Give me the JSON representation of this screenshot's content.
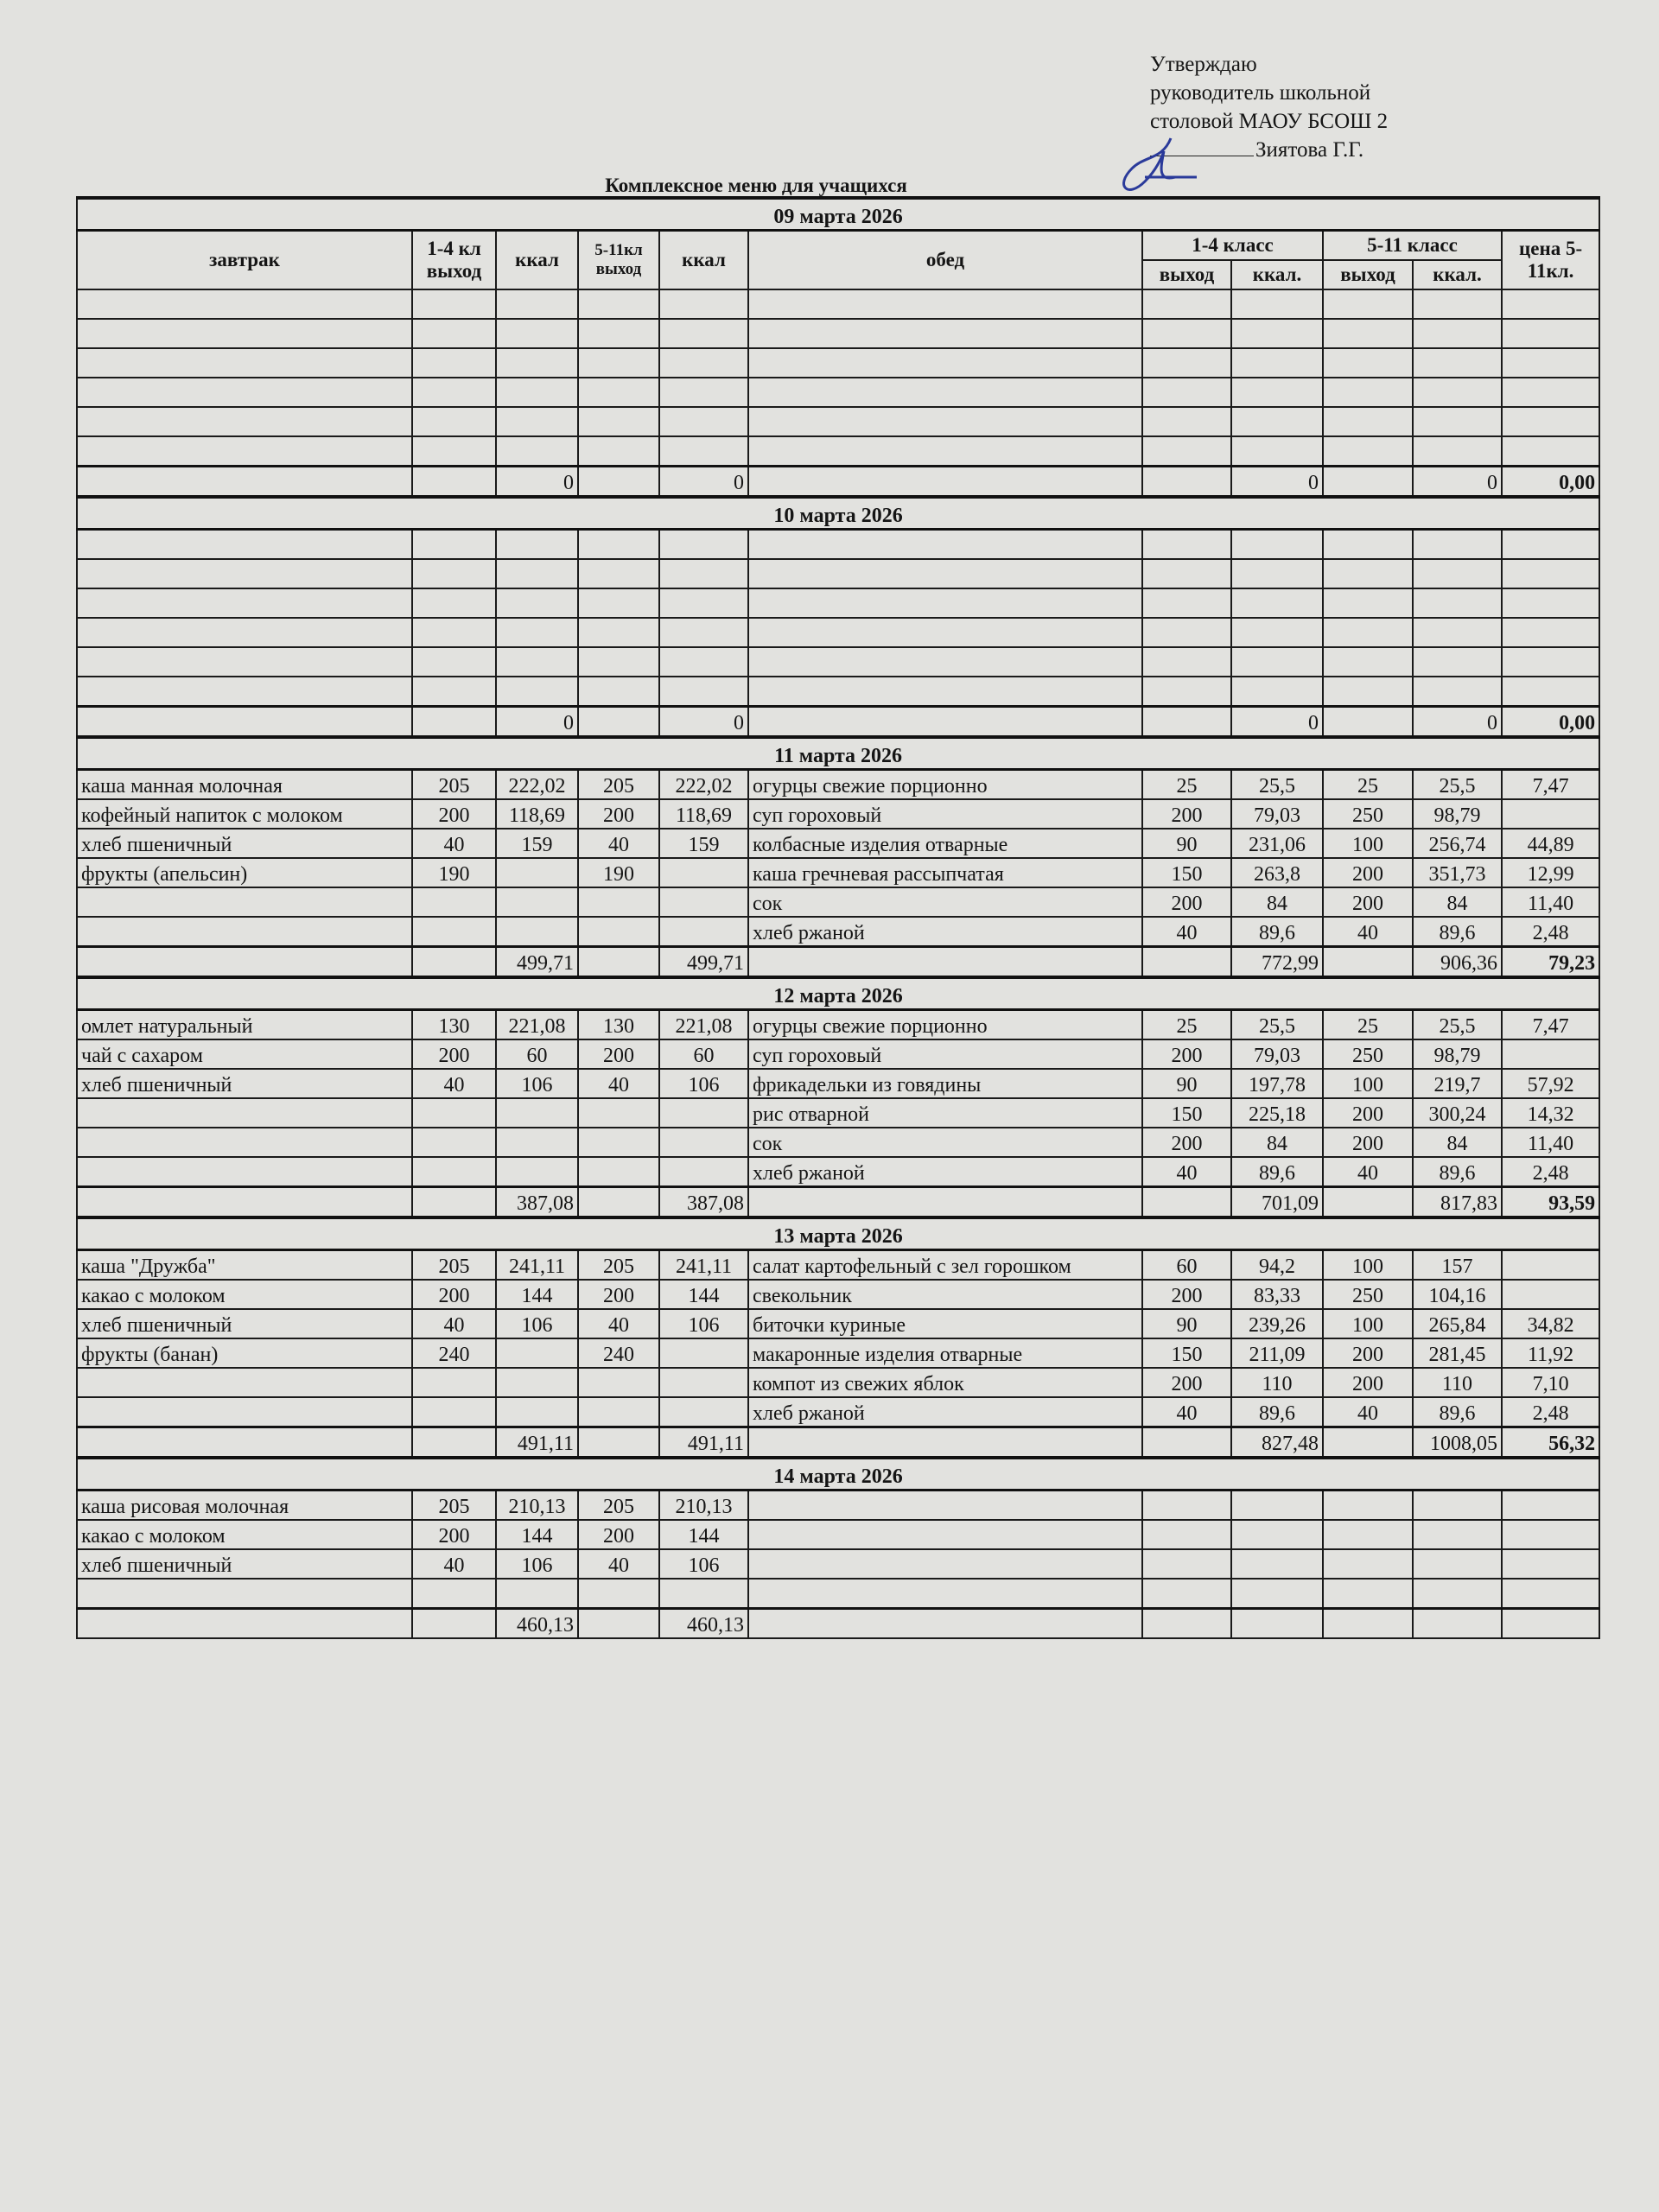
{
  "approval": {
    "line1": "Утверждаю",
    "line2": "руководитель школьной",
    "line3": "столовой МАОУ БСОШ 2",
    "signer": "Зиятова Г.Г."
  },
  "title": "Комплексное меню для учащихся",
  "header": {
    "breakfast": "завтрак",
    "out_1_4": "1-4 кл выход",
    "kcal": "ккал",
    "out_5_11": "5-11кл выход",
    "kcal2": "ккал",
    "lunch": "обед",
    "class_1_4": "1-4 класс",
    "class_5_11": "5-11 класс",
    "price": "цена 5-11кл.",
    "out": "выход",
    "kcal_short": "ккал.",
    "out2": "выход",
    "kcal_short2": "ккал."
  },
  "days": [
    {
      "date": "09 марта 2026",
      "rows": [
        [
          "",
          "",
          "",
          "",
          "",
          "",
          "",
          "",
          "",
          "",
          ""
        ],
        [
          "",
          "",
          "",
          "",
          "",
          "",
          "",
          "",
          "",
          "",
          ""
        ],
        [
          "",
          "",
          "",
          "",
          "",
          "",
          "",
          "",
          "",
          "",
          ""
        ],
        [
          "",
          "",
          "",
          "",
          "",
          "",
          "",
          "",
          "",
          "",
          ""
        ],
        [
          "",
          "",
          "",
          "",
          "",
          "",
          "",
          "",
          "",
          "",
          ""
        ],
        [
          "",
          "",
          "",
          "",
          "",
          "",
          "",
          "",
          "",
          "",
          ""
        ]
      ],
      "total": [
        "",
        "",
        "0",
        "",
        "0",
        "",
        "",
        "0",
        "",
        "0",
        "0,00"
      ]
    },
    {
      "date": "10 марта 2026",
      "rows": [
        [
          "",
          "",
          "",
          "",
          "",
          "",
          "",
          "",
          "",
          "",
          ""
        ],
        [
          "",
          "",
          "",
          "",
          "",
          "",
          "",
          "",
          "",
          "",
          ""
        ],
        [
          "",
          "",
          "",
          "",
          "",
          "",
          "",
          "",
          "",
          "",
          ""
        ],
        [
          "",
          "",
          "",
          "",
          "",
          "",
          "",
          "",
          "",
          "",
          ""
        ],
        [
          "",
          "",
          "",
          "",
          "",
          "",
          "",
          "",
          "",
          "",
          ""
        ],
        [
          "",
          "",
          "",
          "",
          "",
          "",
          "",
          "",
          "",
          "",
          ""
        ]
      ],
      "total": [
        "",
        "",
        "0",
        "",
        "0",
        "",
        "",
        "0",
        "",
        "0",
        "0,00"
      ]
    },
    {
      "date": "11 марта 2026",
      "rows": [
        [
          "каша манная молочная",
          "205",
          "222,02",
          "205",
          "222,02",
          "огурцы свежие порционно",
          "25",
          "25,5",
          "25",
          "25,5",
          "7,47"
        ],
        [
          "кофейный напиток с молоком",
          "200",
          "118,69",
          "200",
          "118,69",
          "суп гороховый",
          "200",
          "79,03",
          "250",
          "98,79",
          ""
        ],
        [
          "хлеб пшеничный",
          "40",
          "159",
          "40",
          "159",
          "колбасные изделия отварные",
          "90",
          "231,06",
          "100",
          "256,74",
          "44,89"
        ],
        [
          "фрукты (апельсин)",
          "190",
          "",
          "190",
          "",
          "каша гречневая рассыпчатая",
          "150",
          "263,8",
          "200",
          "351,73",
          "12,99"
        ],
        [
          "",
          "",
          "",
          "",
          "",
          "сок",
          "200",
          "84",
          "200",
          "84",
          "11,40"
        ],
        [
          "",
          "",
          "",
          "",
          "",
          "хлеб ржаной",
          "40",
          "89,6",
          "40",
          "89,6",
          "2,48"
        ]
      ],
      "total": [
        "",
        "",
        "499,71",
        "",
        "499,71",
        "",
        "",
        "772,99",
        "",
        "906,36",
        "79,23"
      ]
    },
    {
      "date": "12 марта 2026",
      "rows": [
        [
          "омлет натуральный",
          "130",
          "221,08",
          "130",
          "221,08",
          "огурцы свежие порционно",
          "25",
          "25,5",
          "25",
          "25,5",
          "7,47"
        ],
        [
          "чай с сахаром",
          "200",
          "60",
          "200",
          "60",
          "суп гороховый",
          "200",
          "79,03",
          "250",
          "98,79",
          ""
        ],
        [
          "хлеб пшеничный",
          "40",
          "106",
          "40",
          "106",
          "фрикадельки из говядины",
          "90",
          "197,78",
          "100",
          "219,7",
          "57,92"
        ],
        [
          "",
          "",
          "",
          "",
          "",
          "рис отварной",
          "150",
          "225,18",
          "200",
          "300,24",
          "14,32"
        ],
        [
          "",
          "",
          "",
          "",
          "",
          "сок",
          "200",
          "84",
          "200",
          "84",
          "11,40"
        ],
        [
          "",
          "",
          "",
          "",
          "",
          "хлеб ржаной",
          "40",
          "89,6",
          "40",
          "89,6",
          "2,48"
        ]
      ],
      "total": [
        "",
        "",
        "387,08",
        "",
        "387,08",
        "",
        "",
        "701,09",
        "",
        "817,83",
        "93,59"
      ]
    },
    {
      "date": "13 марта 2026",
      "rows": [
        [
          "каша \"Дружба\"",
          "205",
          "241,11",
          "205",
          "241,11",
          "салат картофельный с зел горошком",
          "60",
          "94,2",
          "100",
          "157",
          ""
        ],
        [
          "какао с молоком",
          "200",
          "144",
          "200",
          "144",
          "свекольник",
          "200",
          "83,33",
          "250",
          "104,16",
          ""
        ],
        [
          "хлеб пшеничный",
          "40",
          "106",
          "40",
          "106",
          "биточки куриные",
          "90",
          "239,26",
          "100",
          "265,84",
          "34,82"
        ],
        [
          "фрукты (банан)",
          "240",
          "",
          "240",
          "",
          "макаронные изделия отварные",
          "150",
          "211,09",
          "200",
          "281,45",
          "11,92"
        ],
        [
          "",
          "",
          "",
          "",
          "",
          "компот из свежих яблок",
          "200",
          "110",
          "200",
          "110",
          "7,10"
        ],
        [
          "",
          "",
          "",
          "",
          "",
          "хлеб ржаной",
          "40",
          "89,6",
          "40",
          "89,6",
          "2,48"
        ]
      ],
      "total": [
        "",
        "",
        "491,11",
        "",
        "491,11",
        "",
        "",
        "827,48",
        "",
        "1008,05",
        "56,32"
      ]
    },
    {
      "date": "14 марта 2026",
      "rows": [
        [
          "каша рисовая молочная",
          "205",
          "210,13",
          "205",
          "210,13",
          "",
          "",
          "",
          "",
          "",
          ""
        ],
        [
          "какао с молоком",
          "200",
          "144",
          "200",
          "144",
          "",
          "",
          "",
          "",
          "",
          ""
        ],
        [
          "хлеб пшеничный",
          "40",
          "106",
          "40",
          "106",
          "",
          "",
          "",
          "",
          "",
          ""
        ],
        [
          "",
          "",
          "",
          "",
          "",
          "",
          "",
          "",
          "",
          "",
          ""
        ]
      ],
      "total": [
        "",
        "",
        "460,13",
        "",
        "460,13",
        "",
        "",
        "",
        "",
        "",
        ""
      ]
    }
  ]
}
